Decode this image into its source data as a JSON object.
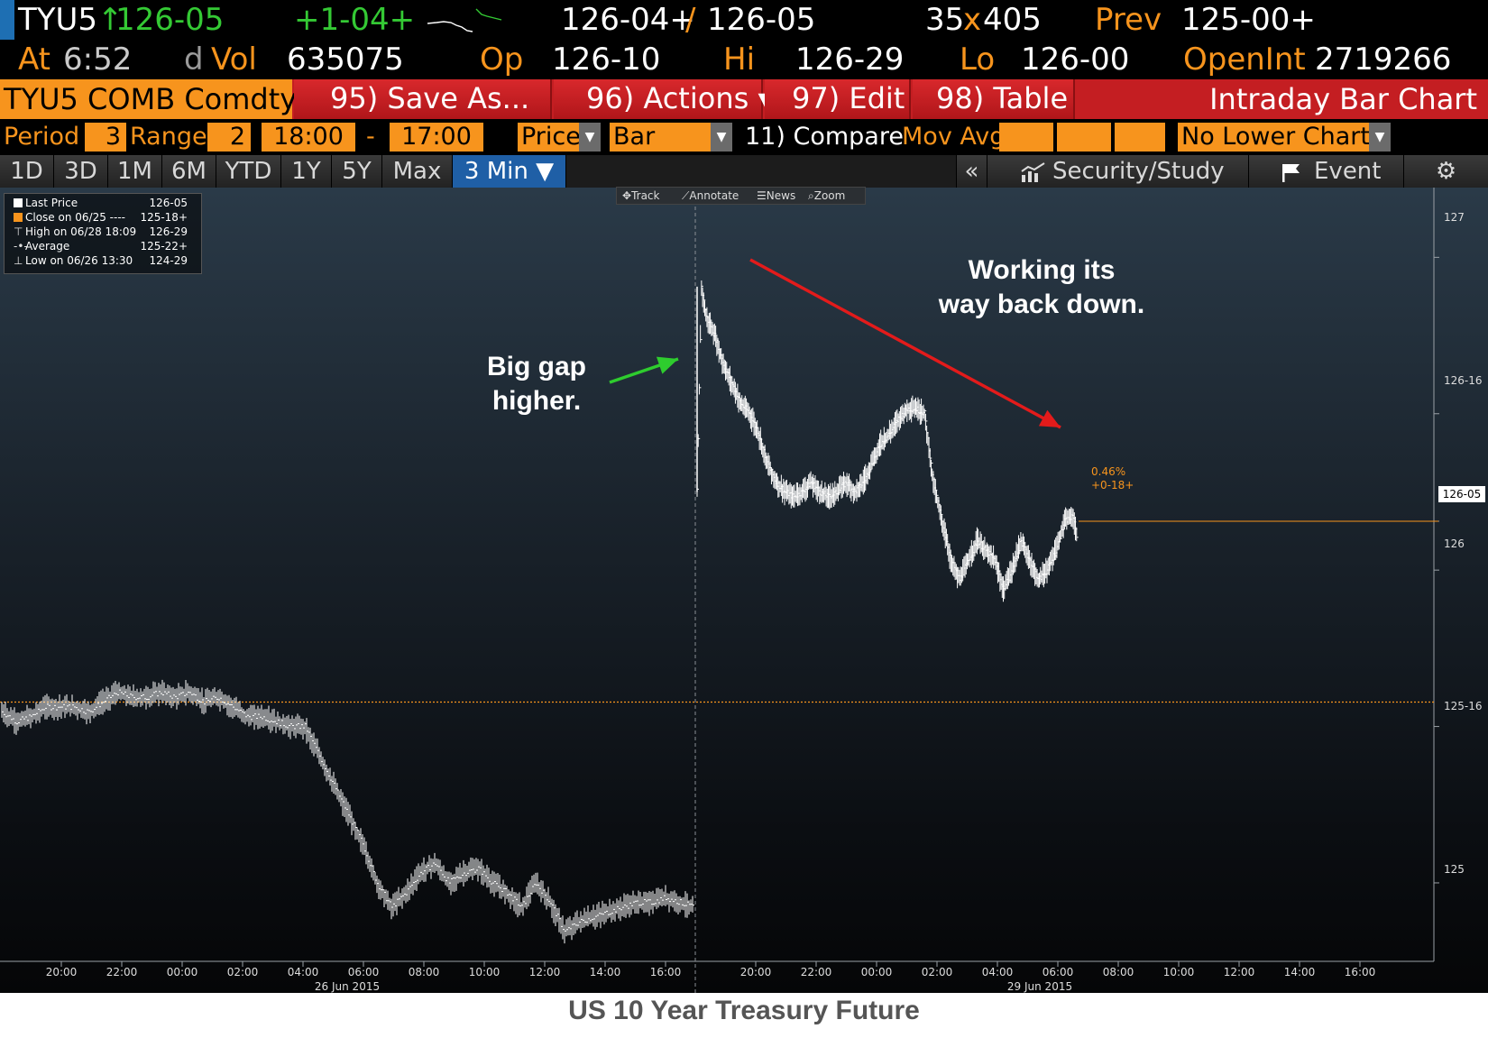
{
  "quote": {
    "ticker": "TYU5",
    "up_arrow": "↑",
    "last": "126-05",
    "change": "+1-04+",
    "bid_ask": "126-04+",
    "slash": "/",
    "ask": "126-05",
    "size_bid": "35",
    "size_x": "x",
    "size_ask": "405",
    "prev_label": "Prev",
    "prev_value": "125-00+",
    "at_label": "At",
    "at_time": "6:52",
    "dvol_d": "d",
    "dvol_label": "Vol",
    "dvol_value": "635075",
    "op_label": "Op",
    "op_value": "126-10",
    "hi_label": "Hi",
    "hi_value": "126-29",
    "lo_label": "Lo",
    "lo_value": "126-00",
    "oi_label": "OpenInt",
    "oi_value": "2719266"
  },
  "toolbar": {
    "security": "TYU5 COMB Comdty",
    "save_as": "95) Save As...",
    "actions": "96) Actions ▾",
    "edit": "97) Edit ▾",
    "table": "98) Table",
    "title": "Intraday Bar Chart"
  },
  "settings": {
    "period_label": "Period",
    "period_value": "3",
    "range_label": "Range",
    "range_value": "2",
    "start_time": "18:00",
    "dash": "-",
    "end_time": "17:00",
    "field": "Price",
    "chart_type": "Bar",
    "compare": "11) Compare",
    "mov_avg": "Mov Avg",
    "lower_chart": "No Lower Chart"
  },
  "tabs": {
    "items": [
      "1D",
      "3D",
      "1M",
      "6M",
      "YTD",
      "1Y",
      "5Y",
      "Max",
      "3 Min ▼"
    ],
    "active": "3 Min ▼",
    "collapse": "«",
    "security_study": "Security/Study",
    "event": "Event",
    "gear": "⚙"
  },
  "legend": {
    "rows": [
      {
        "label": "Last Price",
        "value": "126-05"
      },
      {
        "label": "Close on 06/25 ----",
        "value": "125-18+"
      },
      {
        "label": "High on 06/28 18:09",
        "value": "126-29"
      },
      {
        "label": "Average",
        "value": "125-22+"
      },
      {
        "label": "Low on 06/26 13:30",
        "value": "124-29"
      }
    ],
    "last_color": "#ffffff",
    "close_color": "#f7941d"
  },
  "chart_tools": {
    "track": "Track",
    "annotate": "Annotate",
    "news": "News",
    "zoom": "Zoom"
  },
  "annotations": {
    "gap_line1": "Big gap",
    "gap_line2": "higher.",
    "down_line1": "Working its",
    "down_line2": "way back down."
  },
  "last_tag": {
    "pct": "0.46%",
    "chg": "+0-18+",
    "price": "126-05"
  },
  "caption": "US 10 Year Treasury Future",
  "colors": {
    "orange": "#f7941d",
    "red_bar": "#c41e22",
    "green": "#34c934",
    "arrow_red": "#e31b1b",
    "arrow_green": "#2ecc2e"
  },
  "chart_data": {
    "type": "bar",
    "title": "",
    "y_ticks": [
      "127",
      "126-16",
      "126-05",
      "126",
      "125-16",
      "125"
    ],
    "x_ticks": [
      "20:00",
      "22:00",
      "00:00",
      "02:00",
      "04:00",
      "06:00",
      "08:00",
      "10:00",
      "12:00",
      "14:00",
      "16:00",
      "20:00",
      "22:00",
      "00:00",
      "02:00",
      "04:00",
      "06:00",
      "08:00",
      "10:00",
      "12:00",
      "14:00",
      "16:00"
    ],
    "date_labels": [
      "26 Jun 2015",
      "29 Jun 2015"
    ],
    "ylim_32nds": [
      3994,
      4068
    ],
    "prev_close_32nds": 4018.5,
    "last_32nds": 4037,
    "series": [
      {
        "session": "2015-06-25 18:00 to 2015-06-26 17:00",
        "close_path_32nds": [
          [
            0,
            4017.5
          ],
          [
            2,
            4016.5
          ],
          [
            4,
            4017
          ],
          [
            6,
            4018
          ],
          [
            8,
            4018
          ],
          [
            10,
            4018
          ],
          [
            12,
            4017.5
          ],
          [
            14,
            4018.5
          ],
          [
            16,
            4019.5
          ],
          [
            18,
            4019
          ],
          [
            20,
            4019
          ],
          [
            22,
            4019.5
          ],
          [
            24,
            4019
          ],
          [
            26,
            4019.5
          ],
          [
            28,
            4018.5
          ],
          [
            30,
            4019
          ],
          [
            32,
            4018
          ],
          [
            34,
            4017
          ],
          [
            36,
            4017
          ],
          [
            38,
            4016.5
          ],
          [
            40,
            4016
          ],
          [
            42,
            4016
          ],
          [
            44,
            4013
          ],
          [
            46,
            4010
          ],
          [
            48,
            4007
          ],
          [
            50,
            4004
          ],
          [
            52,
            4000
          ],
          [
            54,
            3997.5
          ],
          [
            56,
            3999
          ],
          [
            58,
            4001
          ],
          [
            60,
            4002
          ],
          [
            62,
            4000
          ],
          [
            64,
            4001
          ],
          [
            66,
            4001.5
          ],
          [
            68,
            4000
          ],
          [
            70,
            3999
          ],
          [
            72,
            3997.5
          ],
          [
            74,
            4000
          ],
          [
            76,
            3998
          ],
          [
            78,
            3995
          ],
          [
            80,
            3996
          ],
          [
            82,
            3996.5
          ],
          [
            84,
            3997
          ],
          [
            86,
            3997.5
          ],
          [
            88,
            3998
          ],
          [
            90,
            3998
          ],
          [
            92,
            3998.5
          ],
          [
            94,
            3998
          ],
          [
            96,
            3997.5
          ]
        ]
      },
      {
        "session": "2015-06-28 18:00 to 2015-06-29 06:52",
        "close_path_32nds": [
          [
            0,
            4040
          ],
          [
            1,
            4061
          ],
          [
            2,
            4058
          ],
          [
            4,
            4056
          ],
          [
            6,
            4053
          ],
          [
            8,
            4051
          ],
          [
            10,
            4049
          ],
          [
            12,
            4048
          ],
          [
            14,
            4046
          ],
          [
            16,
            4043
          ],
          [
            18,
            4041
          ],
          [
            20,
            4040
          ],
          [
            22,
            4039.5
          ],
          [
            24,
            4040
          ],
          [
            26,
            4041
          ],
          [
            28,
            4040
          ],
          [
            30,
            4039.5
          ],
          [
            32,
            4040
          ],
          [
            34,
            4041
          ],
          [
            36,
            4040
          ],
          [
            38,
            4041
          ],
          [
            40,
            4043
          ],
          [
            42,
            4045
          ],
          [
            44,
            4046
          ],
          [
            46,
            4047.5
          ],
          [
            48,
            4048.5
          ],
          [
            50,
            4048.5
          ],
          [
            52,
            4048
          ],
          [
            54,
            4041
          ],
          [
            56,
            4037
          ],
          [
            58,
            4033
          ],
          [
            60,
            4031
          ],
          [
            62,
            4033
          ],
          [
            64,
            4035
          ],
          [
            66,
            4034
          ],
          [
            68,
            4033
          ],
          [
            70,
            4030
          ],
          [
            72,
            4032
          ],
          [
            74,
            4035
          ],
          [
            76,
            4033
          ],
          [
            78,
            4031
          ],
          [
            80,
            4032
          ],
          [
            82,
            4034
          ],
          [
            84,
            4037
          ],
          [
            86,
            4037.5
          ],
          [
            87,
            4035
          ]
        ]
      }
    ]
  }
}
